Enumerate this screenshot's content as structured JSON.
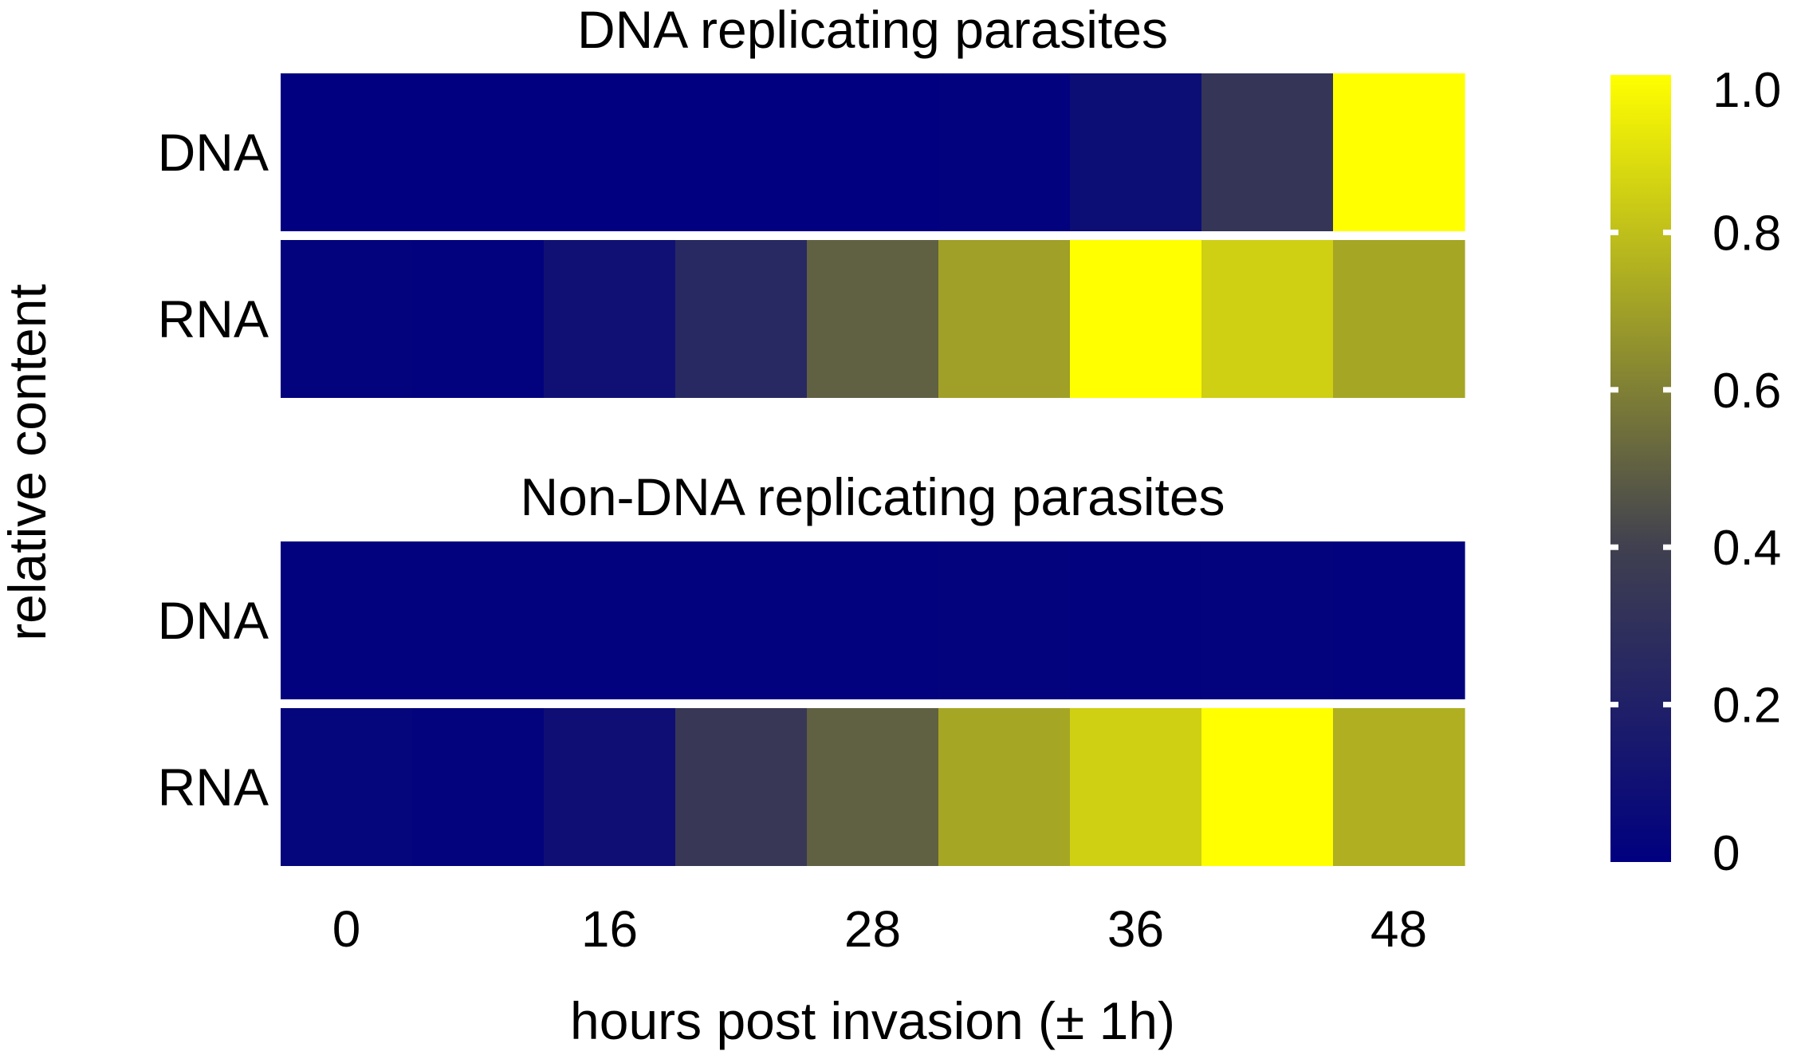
{
  "chart_data": {
    "type": "heatmap",
    "xlabel": "hours post invasion (± 1h)",
    "ylabel": "relative content",
    "x_tick_labels": [
      "0",
      "16",
      "28",
      "36",
      "48"
    ],
    "color_scale": {
      "min": 0,
      "max": 1.0,
      "low_color": "#000080",
      "mid_color": "#404050",
      "high_color": "#ffff00",
      "tick_labels": [
        "0",
        "0.2",
        "0.4",
        "0.6",
        "0.8",
        "1.0"
      ],
      "tick_values": [
        0,
        0.2,
        0.4,
        0.6,
        0.8,
        1.0
      ]
    },
    "panels": [
      {
        "title": "DNA replicating parasites",
        "rows": [
          {
            "name": "DNA",
            "values": [
              0.0,
              0.0,
              0.0,
              0.0,
              0.0,
              0.01,
              0.08,
              0.33,
              1.0
            ]
          },
          {
            "name": "RNA",
            "values": [
              0.02,
              0.01,
              0.1,
              0.25,
              0.5,
              0.7,
              1.0,
              0.85,
              0.72
            ]
          }
        ]
      },
      {
        "title": "Non-DNA replicating parasites",
        "rows": [
          {
            "name": "DNA",
            "values": [
              0.01,
              0.01,
              0.01,
              0.01,
              0.01,
              0.02,
              0.01,
              0.02,
              0.01
            ]
          },
          {
            "name": "RNA",
            "values": [
              0.03,
              0.02,
              0.09,
              0.35,
              0.5,
              0.72,
              0.85,
              1.0,
              0.75
            ]
          }
        ]
      }
    ]
  }
}
